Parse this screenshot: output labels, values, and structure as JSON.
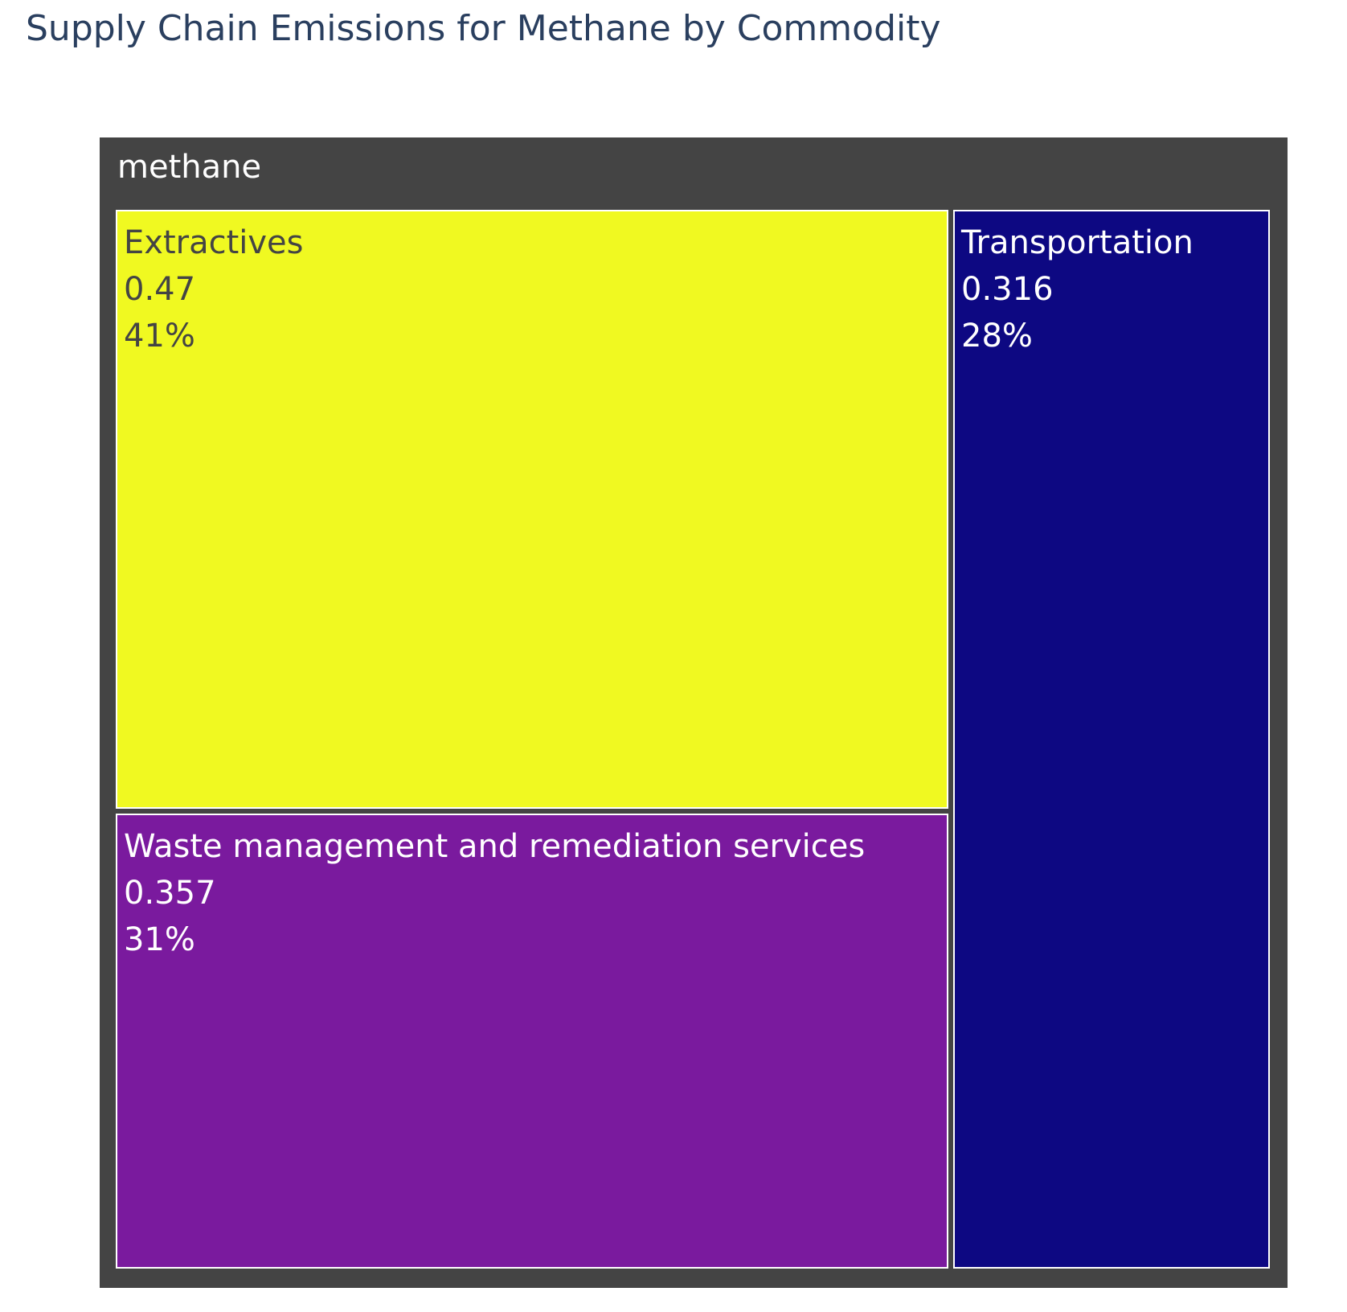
{
  "title": "Supply Chain Emissions for Methane by Commodity",
  "chart_data": {
    "type": "treemap",
    "title": "Supply Chain Emissions for Methane by Commodity",
    "root": {
      "label": "methane",
      "color": "#444444"
    },
    "items": [
      {
        "label": "Extractives",
        "value": 0.47,
        "value_text": "0.47",
        "percent_text": "41%",
        "color": "#f0f921",
        "text_color": "#444444"
      },
      {
        "label": "Waste management and remediation services",
        "value": 0.357,
        "value_text": "0.357",
        "percent_text": "31%",
        "color": "#7a1a9e",
        "text_color": "#ffffff"
      },
      {
        "label": "Transportation",
        "value": 0.316,
        "value_text": "0.316",
        "percent_text": "28%",
        "color": "#0d0882",
        "text_color": "#ffffff"
      }
    ]
  }
}
